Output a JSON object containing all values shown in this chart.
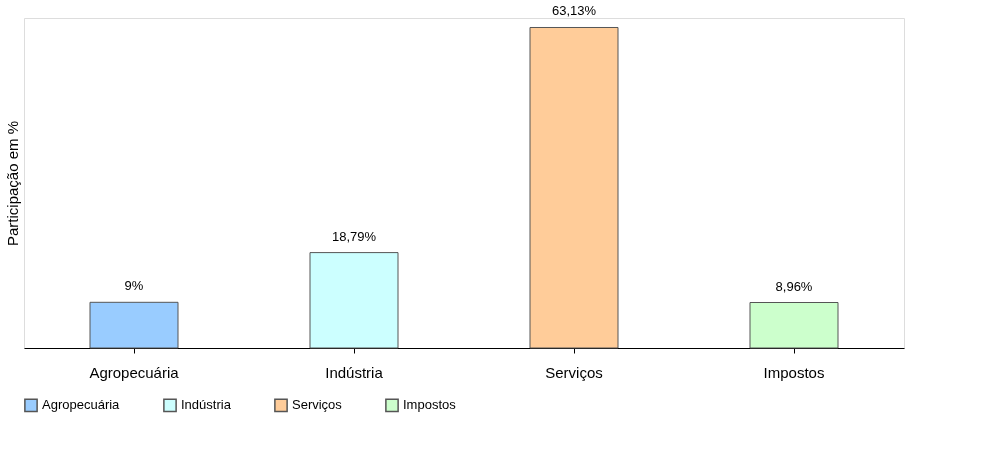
{
  "chart_data": {
    "type": "bar",
    "ylabel": "Participação em %",
    "categories": [
      "Agropecuária",
      "Indústria",
      "Serviços",
      "Impostos"
    ],
    "series": [
      {
        "name": "Agropecuária",
        "color": "#99ccff",
        "values": [
          9,
          null,
          null,
          null
        ],
        "value_labels": [
          "9%",
          null,
          null,
          null
        ]
      },
      {
        "name": "Indústria",
        "color": "#ccffff",
        "values": [
          null,
          18.79,
          null,
          null
        ],
        "value_labels": [
          null,
          "18,79%",
          null,
          null
        ]
      },
      {
        "name": "Serviços",
        "color": "#ffcc99",
        "values": [
          null,
          null,
          63.13,
          null
        ],
        "value_labels": [
          null,
          null,
          "63,13%",
          null
        ]
      },
      {
        "name": "Impostos",
        "color": "#ccffcc",
        "values": [
          null,
          null,
          null,
          8.96
        ],
        "value_labels": [
          null,
          null,
          null,
          "8,96%"
        ]
      }
    ],
    "grid": false,
    "legend": "bottom"
  }
}
